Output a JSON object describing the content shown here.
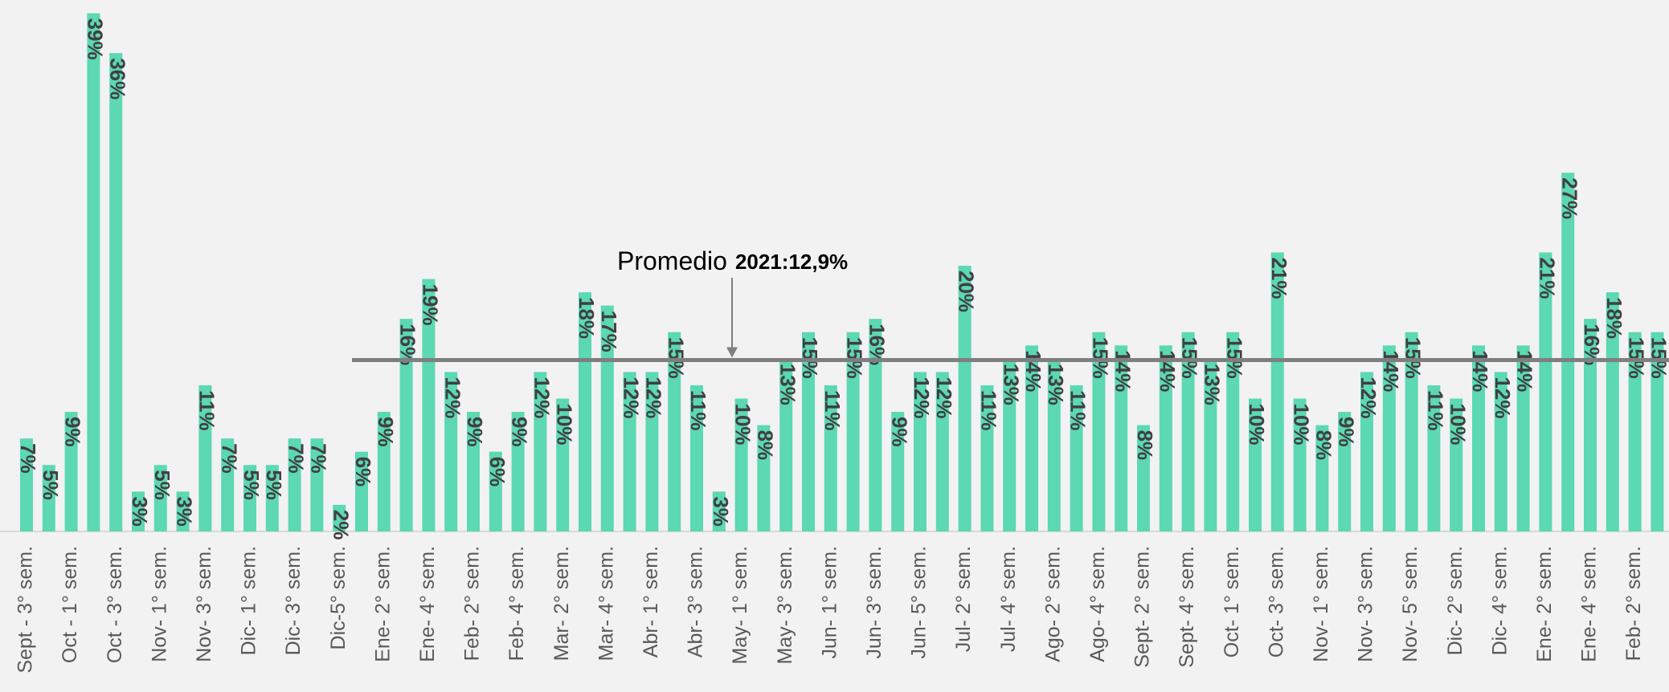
{
  "chart_data": {
    "type": "bar",
    "color": "#5cd8b2",
    "categories": [
      "Sept - 3° sem.",
      null,
      "Oct - 1° sem.",
      null,
      "Oct - 3° sem.",
      null,
      "Nov- 1° sem.",
      null,
      "Nov- 3° sem.",
      null,
      "Dic- 1° sem.",
      null,
      "Dic- 3° sem.",
      null,
      "Dic-5° sem.",
      null,
      "Ene- 2° sem.",
      null,
      "Ene- 4° sem.",
      null,
      "Feb- 2° sem.",
      null,
      "Feb- 4° sem.",
      null,
      "Mar- 2° sem.",
      null,
      "Mar- 4° sem.",
      null,
      "Abr- 1° sem.",
      null,
      "Abr- 3° sem.",
      null,
      "May- 1° sem.",
      null,
      "May- 3° sem.",
      null,
      "Jun- 1° sem.",
      null,
      "Jun- 3° sem.",
      null,
      "Jun- 5° sem.",
      null,
      "Jul- 2° sem.",
      null,
      "Jul- 4° sem.",
      null,
      "Ago- 2° sem.",
      null,
      "Ago- 4° sem.",
      null,
      "Sept- 2° sem.",
      null,
      "Sept- 4° sem.",
      null,
      "Oct- 1° sem.",
      null,
      "Oct- 3° sem.",
      null,
      "Nov- 1° sem.",
      null,
      "Nov- 3° sem.",
      null,
      "Nov- 5° sem.",
      null,
      "Dic- 2° sem.",
      null,
      "Dic- 4° sem.",
      null,
      "Ene- 2° sem.",
      null,
      "Ene- 4° sem.",
      null,
      "Feb- 2° sem.",
      null
    ],
    "values": [
      7,
      5,
      9,
      39,
      36,
      3,
      5,
      3,
      11,
      7,
      5,
      5,
      7,
      7,
      2,
      6,
      9,
      16,
      19,
      12,
      9,
      6,
      9,
      12,
      10,
      18,
      17,
      12,
      12,
      15,
      11,
      3,
      10,
      8,
      13,
      15,
      11,
      15,
      16,
      9,
      12,
      12,
      20,
      11,
      13,
      14,
      13,
      11,
      15,
      14,
      8,
      14,
      15,
      13,
      15,
      10,
      21,
      10,
      8,
      9,
      12,
      14,
      15,
      11,
      10,
      14,
      12,
      14,
      21,
      27,
      16,
      18,
      15,
      15
    ],
    "value_labels": [
      "7%",
      "5%",
      "9%",
      "39%",
      "36%",
      "3%",
      "5%",
      "3%",
      "11%",
      "7%",
      "5%",
      "5%",
      "7%",
      "7%",
      "2%",
      "6%",
      "9%",
      "16%",
      "19%",
      "12%",
      "9%",
      "6%",
      "9%",
      "12%",
      "10%",
      "18%",
      "17%",
      "12%",
      "12%",
      "15%",
      "11%",
      "3%",
      "10%",
      "8%",
      "13%",
      "15%",
      "11%",
      "15%",
      "16%",
      "9%",
      "12%",
      "12%",
      "20%",
      "11%",
      "13%",
      "14%",
      "13%",
      "11%",
      "15%",
      "14%",
      "8%",
      "14%",
      "15%",
      "13%",
      "15%",
      "10%",
      "21%",
      "10%",
      "8%",
      "9%",
      "12%",
      "14%",
      "15%",
      "11%",
      "10%",
      "14%",
      "12%",
      "14%",
      "21%",
      "27%",
      "16%",
      "18%",
      "15%",
      "15%"
    ],
    "ylim": [
      0,
      40
    ],
    "average_line": {
      "value": 12.9,
      "prefix": "Promedio",
      "label": "2021:12,9%",
      "color": "#7f7f7f"
    }
  }
}
